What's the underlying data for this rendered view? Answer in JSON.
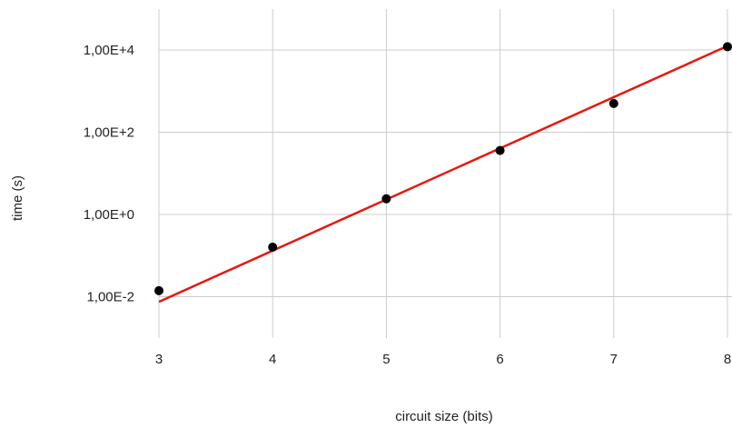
{
  "chart_data": {
    "type": "scatter",
    "xlabel": "circuit size (bits)",
    "ylabel": "time (s)",
    "x_scale": "linear",
    "y_scale": "log",
    "xlim": [
      3,
      8
    ],
    "ylim": [
      0.001,
      100000
    ],
    "x_ticks": [
      "3",
      "4",
      "5",
      "6",
      "7",
      "8"
    ],
    "y_ticks": [
      {
        "value": 0.01,
        "label": "1,00E-2"
      },
      {
        "value": 1,
        "label": "1,00E+0"
      },
      {
        "value": 100,
        "label": "1,00E+2"
      },
      {
        "value": 10000,
        "label": "1,00E+4"
      }
    ],
    "grid": true,
    "legend": "none",
    "series": [
      {
        "type": "scatter",
        "color": "#000000",
        "points": [
          {
            "x": 3,
            "y": 0.014
          },
          {
            "x": 4,
            "y": 0.16
          },
          {
            "x": 5,
            "y": 2.4
          },
          {
            "x": 6,
            "y": 36
          },
          {
            "x": 7,
            "y": 500
          },
          {
            "x": 8,
            "y": 12000
          }
        ]
      },
      {
        "type": "trendline",
        "color": "#e8170e",
        "points": [
          {
            "x": 3,
            "y": 0.0075
          },
          {
            "x": 8,
            "y": 12500
          }
        ]
      }
    ]
  }
}
